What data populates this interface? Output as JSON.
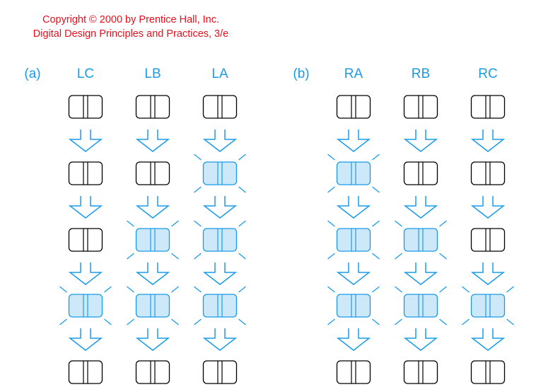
{
  "copyright": {
    "line1": "Copyright © 2000 by Prentice Hall, Inc.",
    "line2": "Digital Design Principles and Practices, 3/e"
  },
  "colors": {
    "copyright": "#e8101c",
    "label": "#1a9be8",
    "lamp_on_fill": "#cde8f8",
    "lamp_on_stroke": "#1a9be8",
    "lamp_off_stroke": "#000000",
    "arrow": "#1a9be8"
  },
  "panels": [
    {
      "label": "(a)",
      "columns": [
        {
          "name": "LC",
          "states": [
            0,
            0,
            0,
            1,
            0
          ]
        },
        {
          "name": "LB",
          "states": [
            0,
            0,
            1,
            1,
            0
          ]
        },
        {
          "name": "LA",
          "states": [
            0,
            1,
            1,
            1,
            0
          ]
        }
      ]
    },
    {
      "label": "(b)",
      "columns": [
        {
          "name": "RA",
          "states": [
            0,
            1,
            1,
            1,
            0
          ]
        },
        {
          "name": "RB",
          "states": [
            0,
            0,
            1,
            1,
            0
          ]
        },
        {
          "name": "RC",
          "states": [
            0,
            0,
            0,
            1,
            0
          ]
        }
      ]
    }
  ]
}
